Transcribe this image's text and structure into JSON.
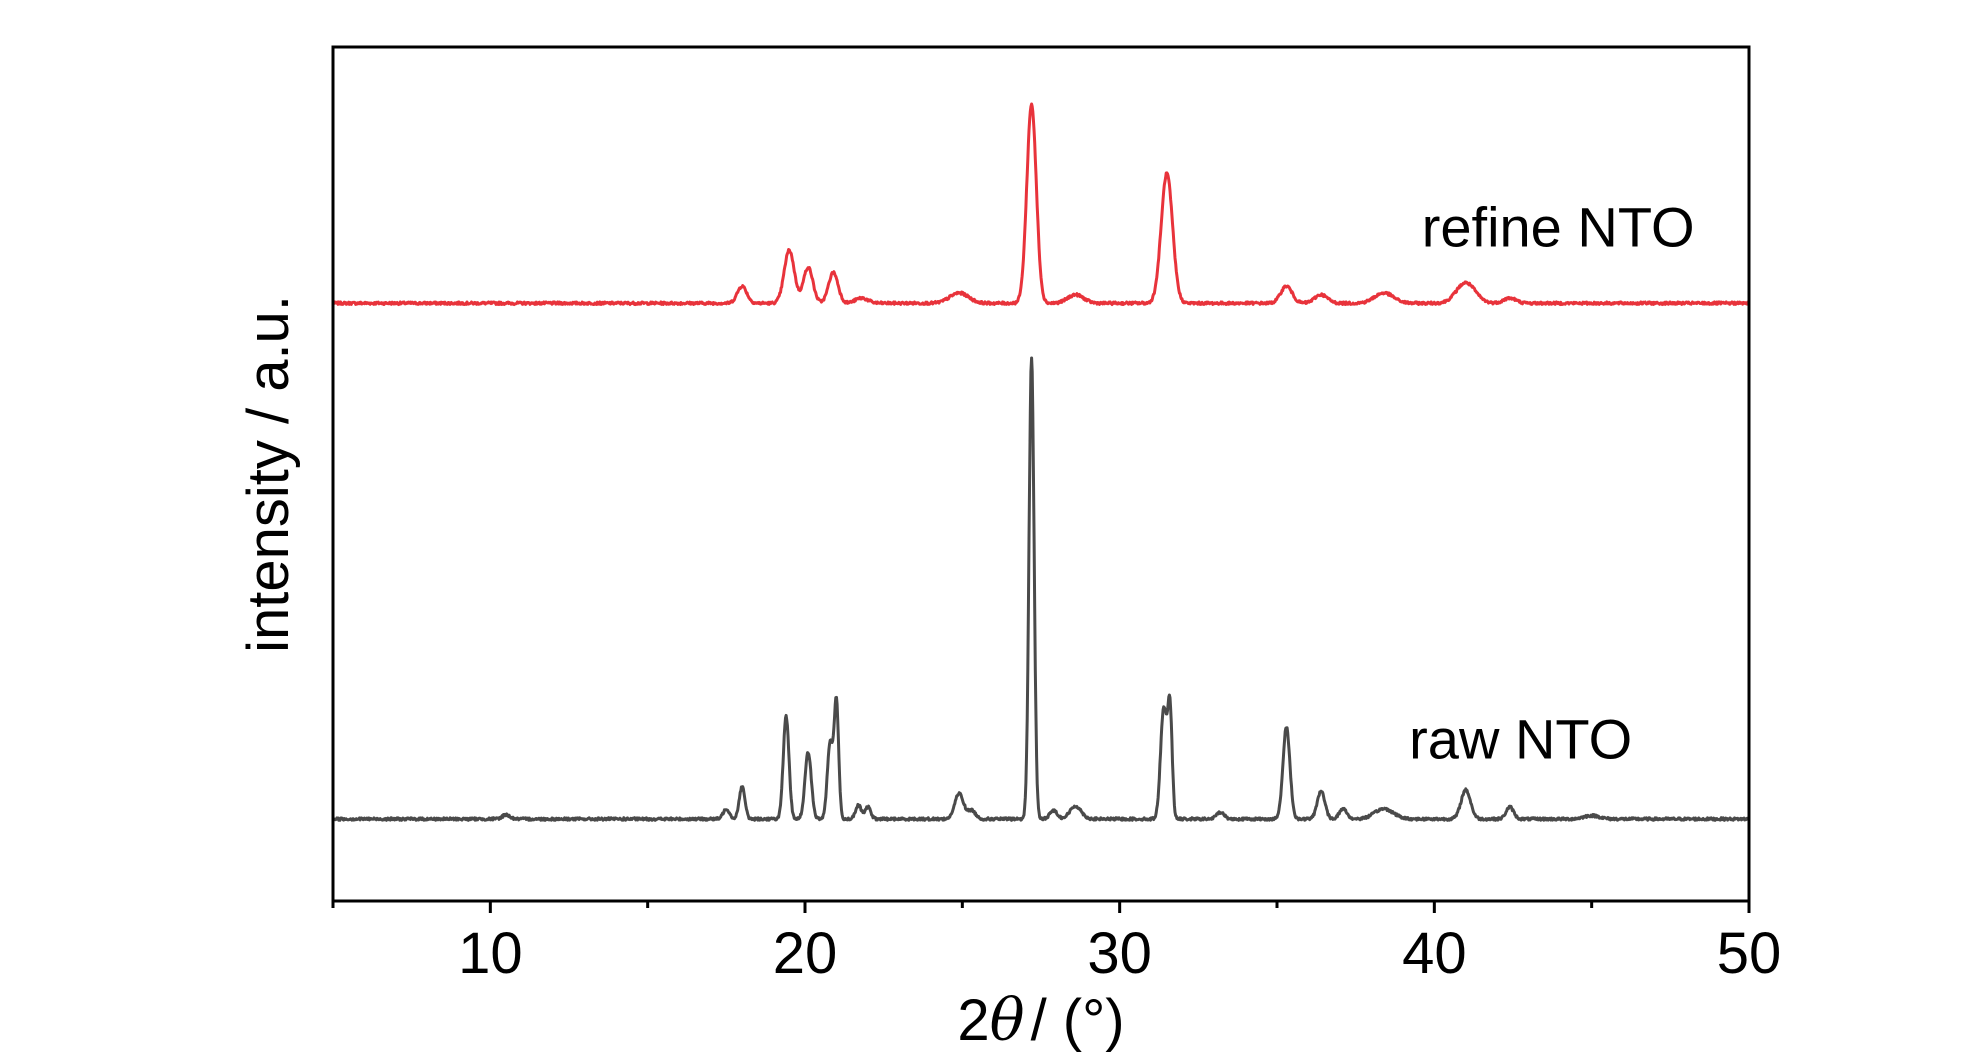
{
  "chart_data": {
    "type": "line",
    "title": "",
    "xlabel": "2θ / (°)",
    "xlabel_parts": {
      "prefix": "2",
      "symbol": "θ",
      "suffix": "/ (°)"
    },
    "ylabel": "intensity / a.u.",
    "xlim": [
      5,
      50
    ],
    "ylim": [
      0,
      1
    ],
    "x_ticks": [
      10,
      20,
      30,
      40,
      50
    ],
    "x_tick_labels": [
      "10",
      "20",
      "30",
      "40",
      "50"
    ],
    "y_ticks": [],
    "grid": false,
    "legend": "none",
    "series": [
      {
        "name": "refine NTO",
        "color": "#e8333b",
        "baseline": 0.7,
        "label_x": 39.6,
        "label_level": 0.79,
        "peaks": [
          {
            "x": 18.0,
            "h": 0.02,
            "w": 0.15
          },
          {
            "x": 19.5,
            "h": 0.062,
            "w": 0.16
          },
          {
            "x": 20.1,
            "h": 0.042,
            "w": 0.15
          },
          {
            "x": 20.9,
            "h": 0.036,
            "w": 0.15
          },
          {
            "x": 21.8,
            "h": 0.006,
            "w": 0.2
          },
          {
            "x": 24.9,
            "h": 0.012,
            "w": 0.3
          },
          {
            "x": 27.2,
            "h": 0.233,
            "w": 0.15
          },
          {
            "x": 28.6,
            "h": 0.01,
            "w": 0.25
          },
          {
            "x": 31.5,
            "h": 0.152,
            "w": 0.18
          },
          {
            "x": 35.3,
            "h": 0.02,
            "w": 0.18
          },
          {
            "x": 36.4,
            "h": 0.01,
            "w": 0.2
          },
          {
            "x": 38.4,
            "h": 0.012,
            "w": 0.3
          },
          {
            "x": 41.0,
            "h": 0.024,
            "w": 0.3
          },
          {
            "x": 42.4,
            "h": 0.006,
            "w": 0.2
          }
        ]
      },
      {
        "name": "raw NTO",
        "color": "#4a4a4a",
        "baseline": 0.096,
        "label_x": 39.2,
        "label_level": 0.19,
        "peaks": [
          {
            "x": 10.5,
            "h": 0.005,
            "w": 0.12
          },
          {
            "x": 17.5,
            "h": 0.012,
            "w": 0.1
          },
          {
            "x": 18.0,
            "h": 0.038,
            "w": 0.09
          },
          {
            "x": 19.4,
            "h": 0.12,
            "w": 0.09
          },
          {
            "x": 20.1,
            "h": 0.078,
            "w": 0.1
          },
          {
            "x": 20.8,
            "h": 0.09,
            "w": 0.09
          },
          {
            "x": 21.0,
            "h": 0.135,
            "w": 0.07
          },
          {
            "x": 21.7,
            "h": 0.016,
            "w": 0.09
          },
          {
            "x": 22.0,
            "h": 0.014,
            "w": 0.09
          },
          {
            "x": 24.9,
            "h": 0.03,
            "w": 0.14
          },
          {
            "x": 25.3,
            "h": 0.01,
            "w": 0.12
          },
          {
            "x": 27.2,
            "h": 0.54,
            "w": 0.08
          },
          {
            "x": 27.9,
            "h": 0.01,
            "w": 0.12
          },
          {
            "x": 28.6,
            "h": 0.015,
            "w": 0.18
          },
          {
            "x": 31.4,
            "h": 0.13,
            "w": 0.1
          },
          {
            "x": 31.6,
            "h": 0.125,
            "w": 0.07
          },
          {
            "x": 33.2,
            "h": 0.008,
            "w": 0.12
          },
          {
            "x": 35.3,
            "h": 0.108,
            "w": 0.11
          },
          {
            "x": 36.4,
            "h": 0.033,
            "w": 0.12
          },
          {
            "x": 37.1,
            "h": 0.012,
            "w": 0.12
          },
          {
            "x": 38.4,
            "h": 0.012,
            "w": 0.3
          },
          {
            "x": 41.0,
            "h": 0.034,
            "w": 0.15
          },
          {
            "x": 42.4,
            "h": 0.014,
            "w": 0.12
          },
          {
            "x": 45.0,
            "h": 0.004,
            "w": 0.25
          }
        ]
      }
    ]
  }
}
